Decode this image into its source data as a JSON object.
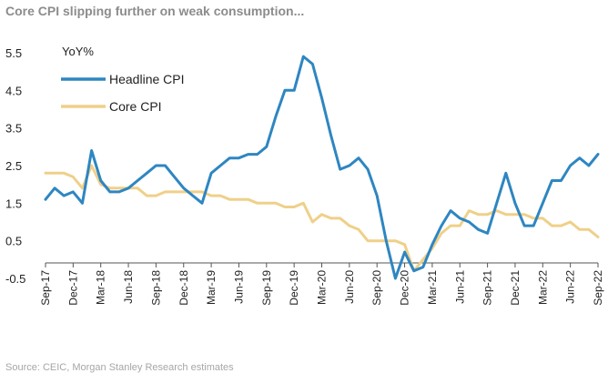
{
  "title": "Core CPI slipping further on weak consumption...",
  "source": "Source: CEIC, Morgan Stanley Research estimates",
  "chart_data": {
    "type": "line",
    "ylabel": "YoY%",
    "yticks": [
      5.5,
      4.5,
      3.5,
      2.5,
      1.5,
      0.5,
      -0.5
    ],
    "ylim": [
      -0.5,
      5.5
    ],
    "xlim": [
      "2017-09",
      "2022-09"
    ],
    "xticks": [
      "Sep-17",
      "Dec-17",
      "Mar-18",
      "Jun-18",
      "Sep-18",
      "Dec-18",
      "Mar-19",
      "Jun-19",
      "Sep-19",
      "Dec-19",
      "Mar-20",
      "Jun-20",
      "Sep-20",
      "Dec-20",
      "Mar-21",
      "Jun-21",
      "Sep-21",
      "Dec-21",
      "Mar-22",
      "Jun-22",
      "Sep-22"
    ],
    "grid": false,
    "legend_position": "top-left",
    "x": [
      "2017-09",
      "2017-10",
      "2017-11",
      "2017-12",
      "2018-01",
      "2018-02",
      "2018-03",
      "2018-04",
      "2018-05",
      "2018-06",
      "2018-07",
      "2018-08",
      "2018-09",
      "2018-10",
      "2018-11",
      "2018-12",
      "2019-01",
      "2019-02",
      "2019-03",
      "2019-04",
      "2019-05",
      "2019-06",
      "2019-07",
      "2019-08",
      "2019-09",
      "2019-10",
      "2019-11",
      "2019-12",
      "2020-01",
      "2020-02",
      "2020-03",
      "2020-04",
      "2020-05",
      "2020-06",
      "2020-07",
      "2020-08",
      "2020-09",
      "2020-10",
      "2020-11",
      "2020-12",
      "2021-01",
      "2021-02",
      "2021-03",
      "2021-04",
      "2021-05",
      "2021-06",
      "2021-07",
      "2021-08",
      "2021-09",
      "2021-10",
      "2021-11",
      "2021-12",
      "2022-01",
      "2022-02",
      "2022-03",
      "2022-04",
      "2022-05",
      "2022-06",
      "2022-07",
      "2022-08",
      "2022-09"
    ],
    "series": [
      {
        "name": "Headline CPI",
        "color": "#2e86c1",
        "values": [
          1.6,
          1.9,
          1.7,
          1.8,
          1.5,
          2.9,
          2.1,
          1.8,
          1.8,
          1.9,
          2.1,
          2.3,
          2.5,
          2.5,
          2.2,
          1.9,
          1.7,
          1.5,
          2.3,
          2.5,
          2.7,
          2.7,
          2.8,
          2.8,
          3.0,
          3.8,
          4.5,
          4.5,
          5.4,
          5.2,
          4.3,
          3.3,
          2.4,
          2.5,
          2.7,
          2.4,
          1.7,
          0.5,
          -0.5,
          0.2,
          -0.3,
          -0.2,
          0.4,
          0.9,
          1.3,
          1.1,
          1.0,
          0.8,
          0.7,
          1.5,
          2.3,
          1.5,
          0.9,
          0.9,
          1.5,
          2.1,
          2.1,
          2.5,
          2.7,
          2.5,
          2.8
        ]
      },
      {
        "name": "Core CPI",
        "color": "#efd089",
        "values": [
          2.3,
          2.3,
          2.3,
          2.2,
          1.9,
          2.5,
          2.0,
          1.9,
          1.9,
          1.9,
          1.9,
          1.7,
          1.7,
          1.8,
          1.8,
          1.8,
          1.8,
          1.8,
          1.7,
          1.7,
          1.6,
          1.6,
          1.6,
          1.5,
          1.5,
          1.5,
          1.4,
          1.4,
          1.5,
          1.0,
          1.2,
          1.1,
          1.1,
          0.9,
          0.8,
          0.5,
          0.5,
          0.5,
          0.5,
          0.4,
          -0.3,
          0.0,
          0.3,
          0.7,
          0.9,
          0.9,
          1.3,
          1.2,
          1.2,
          1.3,
          1.2,
          1.2,
          1.2,
          1.1,
          1.1,
          0.9,
          0.9,
          1.0,
          0.8,
          0.8,
          0.6
        ]
      }
    ]
  }
}
